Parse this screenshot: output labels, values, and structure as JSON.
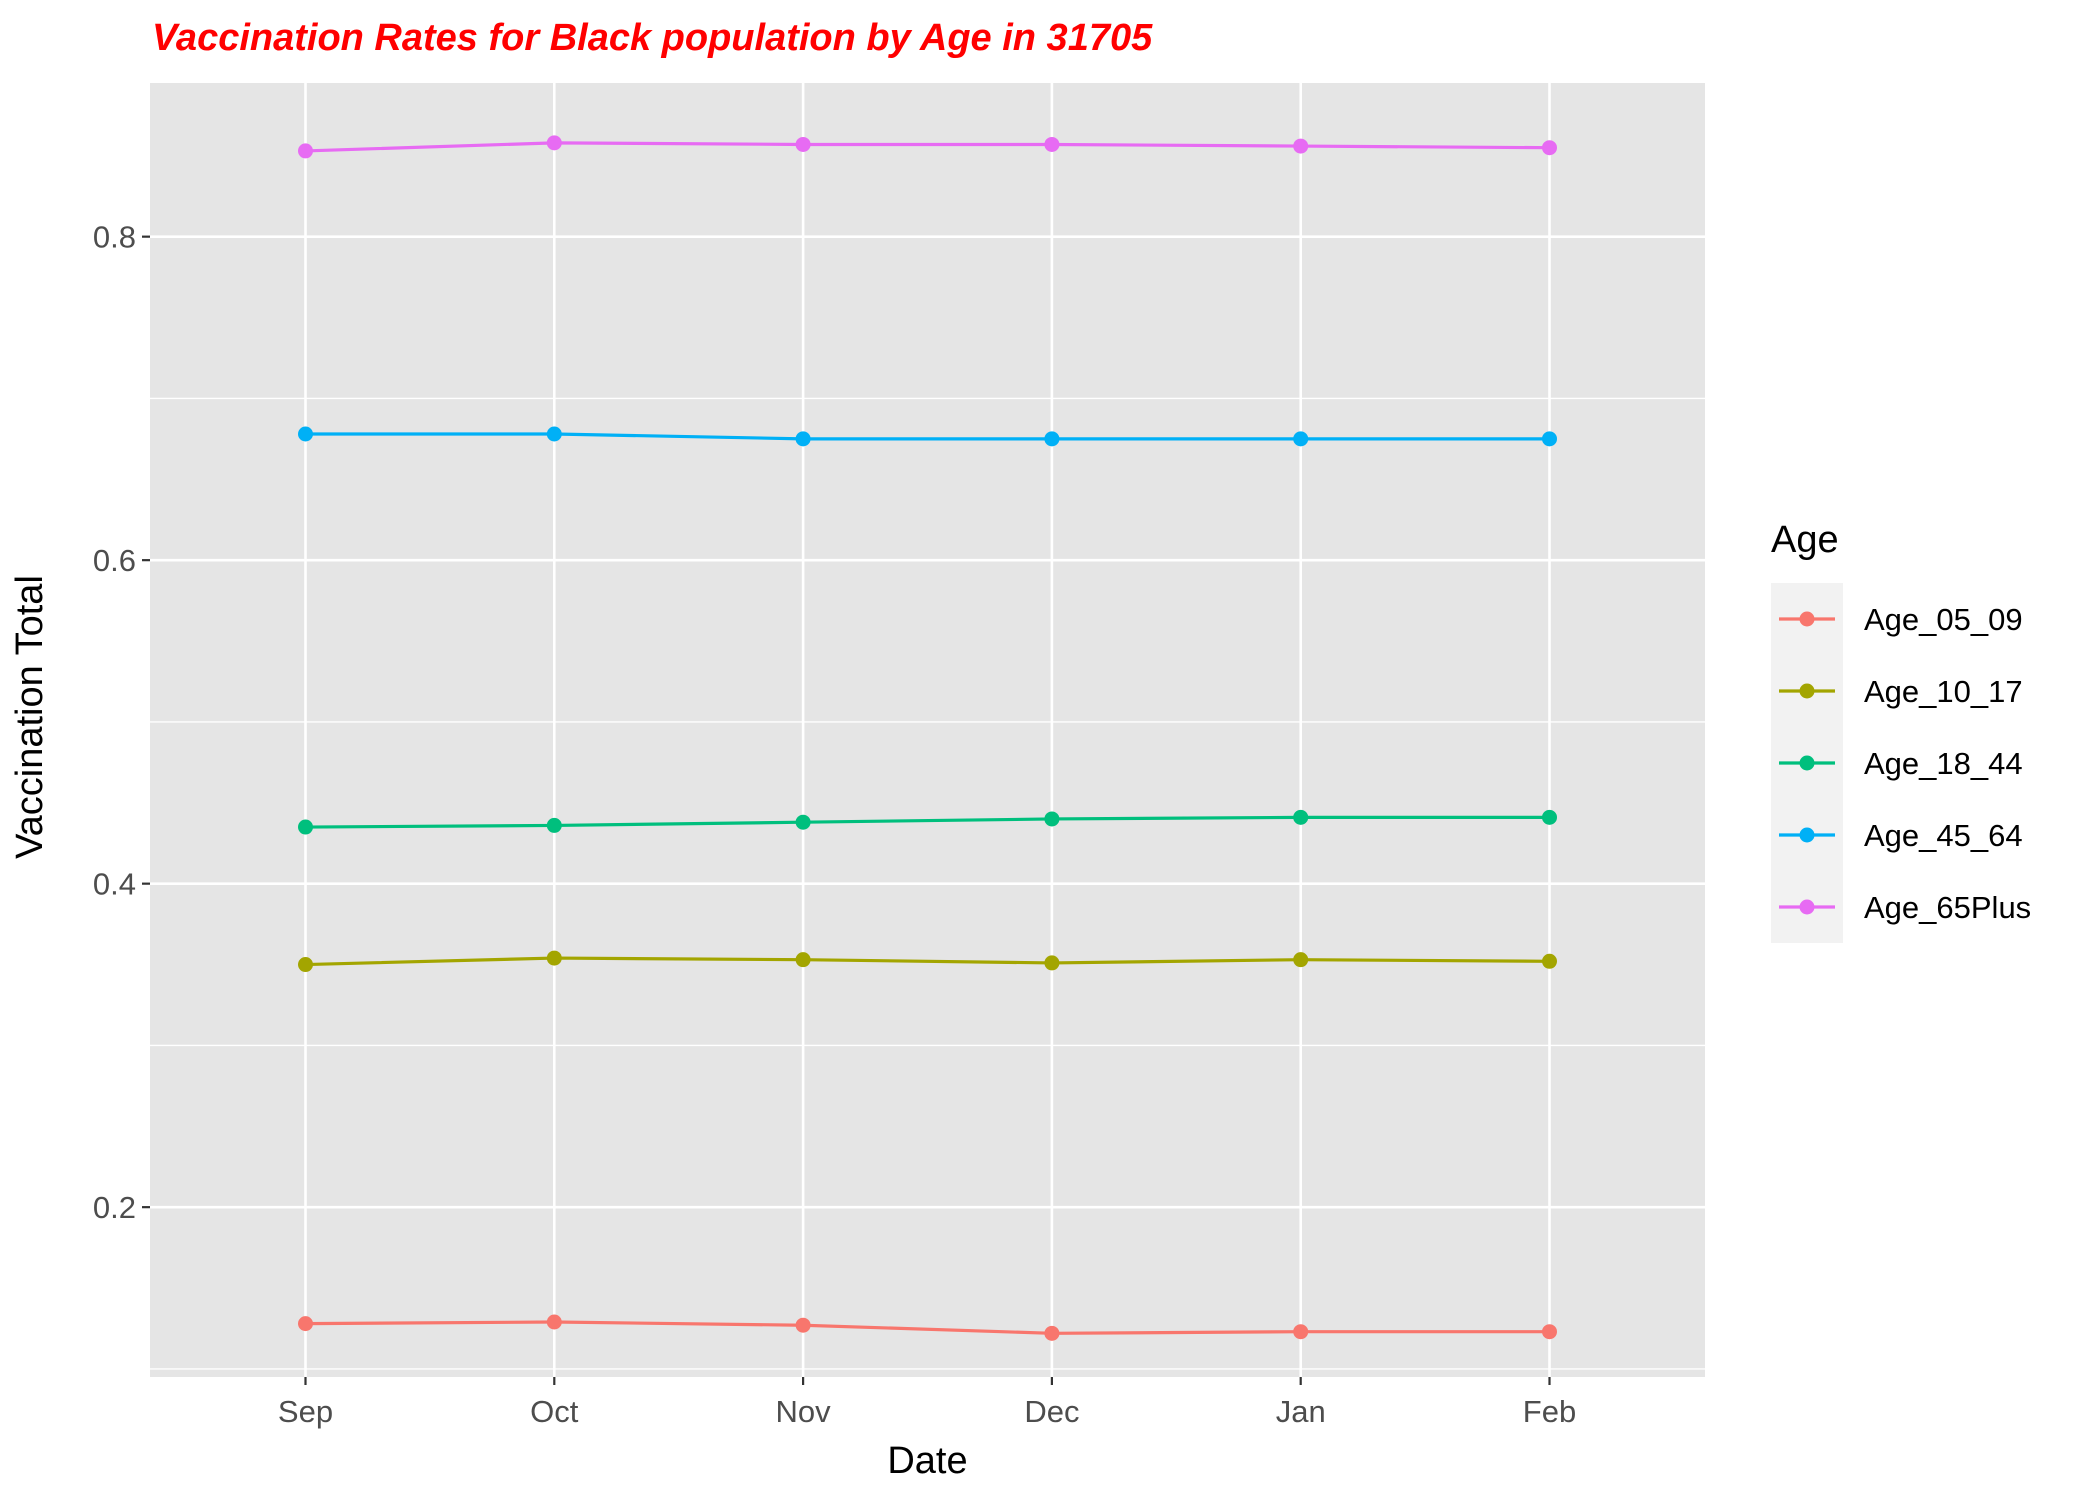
{
  "chart_data": {
    "type": "line",
    "title": "Vaccination Rates for Black population by Age in 31705",
    "xlabel": "Date",
    "ylabel": "Vaccination Total",
    "categories": [
      "Sep",
      "Oct",
      "Nov",
      "Dec",
      "Jan",
      "Feb"
    ],
    "ylim": [
      0.095,
      0.895
    ],
    "yticks": [
      0.2,
      0.4,
      0.6,
      0.8
    ],
    "ytick_labels": [
      "0.2",
      "0.4",
      "0.6",
      "0.8"
    ],
    "grid": true,
    "legend": {
      "title": "Age",
      "position": "right"
    },
    "series": [
      {
        "name": "Age_05_09",
        "color": "#F8766D",
        "values": [
          0.128,
          0.129,
          0.127,
          0.122,
          0.123,
          0.123
        ]
      },
      {
        "name": "Age_10_17",
        "color": "#A3A500",
        "values": [
          0.35,
          0.354,
          0.353,
          0.351,
          0.353,
          0.352
        ]
      },
      {
        "name": "Age_18_44",
        "color": "#00BF7D",
        "values": [
          0.435,
          0.436,
          0.438,
          0.44,
          0.441,
          0.441
        ]
      },
      {
        "name": "Age_45_64",
        "color": "#00B0F6",
        "values": [
          0.678,
          0.678,
          0.675,
          0.675,
          0.675,
          0.675
        ]
      },
      {
        "name": "Age_65Plus",
        "color": "#E76BF3",
        "values": [
          0.853,
          0.858,
          0.857,
          0.857,
          0.856,
          0.855
        ]
      }
    ],
    "title_color": "#FF0000",
    "panel_color": "#E5E5E5"
  }
}
